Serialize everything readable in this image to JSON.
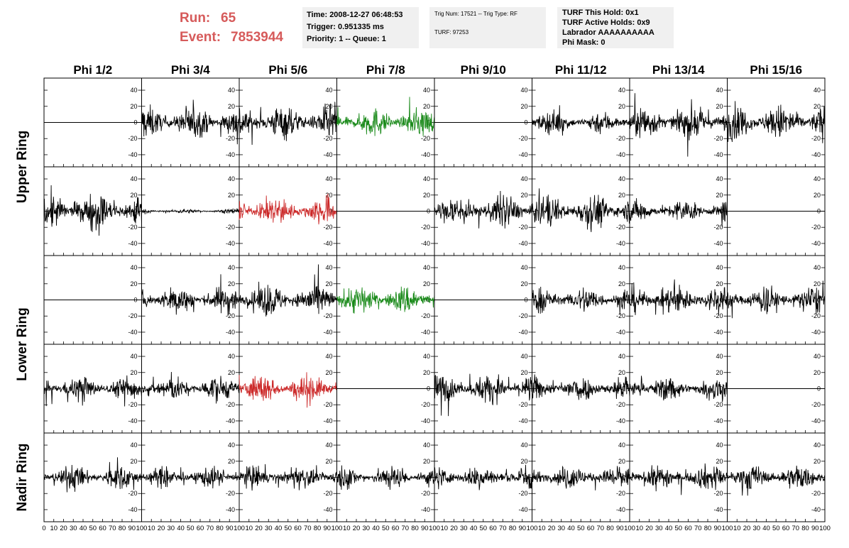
{
  "header": {
    "run_label": "Run:",
    "run_value": "65",
    "event_label": "Event:",
    "event_value": "7853944",
    "box1": [
      "Time: 2008-12-27 06:48:53",
      "Trigger: 0.951335 ms",
      "Priority: 1 -- Queue: 1"
    ],
    "box2": [
      "Trig Num: 17521 -- Trig Type: RF",
      "TURF: 97253"
    ],
    "box3": [
      "TURF This Hold: 0x1",
      "TURF Active Holds: 0x9",
      "Labrador AAAAAAAAAA",
      "Phi Mask: 0"
    ]
  },
  "chart_data": {
    "type": "line",
    "title": "",
    "columns": [
      "Phi 1/2",
      "Phi 3/4",
      "Phi 5/6",
      "Phi 7/8",
      "Phi 9/10",
      "Phi 11/12",
      "Phi 13/14",
      "Phi 15/16"
    ],
    "ring_labels": [
      {
        "text": "Upper Ring",
        "rows": [
          0,
          1
        ]
      },
      {
        "text": "Lower Ring",
        "rows": [
          2,
          3
        ]
      },
      {
        "text": "Nadir Ring",
        "rows": [
          4
        ]
      }
    ],
    "xlim": [
      0,
      100
    ],
    "ylim": [
      -55,
      55
    ],
    "yticks": [
      -40,
      -20,
      0,
      20,
      40
    ],
    "xticks": [
      0,
      10,
      20,
      30,
      40,
      50,
      60,
      70,
      80,
      90,
      100
    ],
    "xtick_labels": [
      "0",
      "10",
      "20",
      "30",
      "40",
      "50",
      "60",
      "70",
      "80",
      "90",
      "100"
    ],
    "samples": 260,
    "colors": {
      "default": "#000000",
      "green": "#1a8a1a",
      "red": "#cc2a2a",
      "header_red": "#d65a5a"
    },
    "waveforms": [
      [
        {
          "amp": 0,
          "color": "default"
        },
        {
          "amp": 16,
          "color": "default"
        },
        {
          "amp": 17,
          "color": "default"
        },
        {
          "amp": 14,
          "color": "green"
        },
        {
          "amp": 0,
          "color": "default"
        },
        {
          "amp": 11,
          "color": "default"
        },
        {
          "amp": 16,
          "color": "default"
        },
        {
          "amp": 17,
          "color": "default"
        }
      ],
      [
        {
          "amp": 18,
          "color": "default"
        },
        {
          "amp": 2,
          "color": "default"
        },
        {
          "amp": 14,
          "color": "red"
        },
        {
          "amp": 0,
          "color": "default"
        },
        {
          "amp": 16,
          "color": "default"
        },
        {
          "amp": 17,
          "color": "default"
        },
        {
          "amp": 11,
          "color": "default"
        },
        {
          "amp": 0,
          "color": "default"
        }
      ],
      [
        {
          "amp": 0,
          "color": "default"
        },
        {
          "amp": 14,
          "color": "default"
        },
        {
          "amp": 16,
          "color": "default"
        },
        {
          "amp": 14,
          "color": "green"
        },
        {
          "amp": 0,
          "color": "default"
        },
        {
          "amp": 13,
          "color": "default"
        },
        {
          "amp": 15,
          "color": "default"
        },
        {
          "amp": 14,
          "color": "default"
        }
      ],
      [
        {
          "amp": 12,
          "color": "default"
        },
        {
          "amp": 12,
          "color": "default"
        },
        {
          "amp": 14,
          "color": "red"
        },
        {
          "amp": 0,
          "color": "default"
        },
        {
          "amp": 14,
          "color": "default"
        },
        {
          "amp": 13,
          "color": "default"
        },
        {
          "amp": 12,
          "color": "default"
        },
        {
          "amp": 0,
          "color": "default"
        }
      ],
      [
        {
          "amp": 12,
          "color": "default"
        },
        {
          "amp": 10,
          "color": "default"
        },
        {
          "amp": 11,
          "color": "default"
        },
        {
          "amp": 11,
          "color": "default"
        },
        {
          "amp": 12,
          "color": "default"
        },
        {
          "amp": 12,
          "color": "default"
        },
        {
          "amp": 12,
          "color": "default"
        },
        {
          "amp": 12,
          "color": "default"
        }
      ]
    ]
  }
}
